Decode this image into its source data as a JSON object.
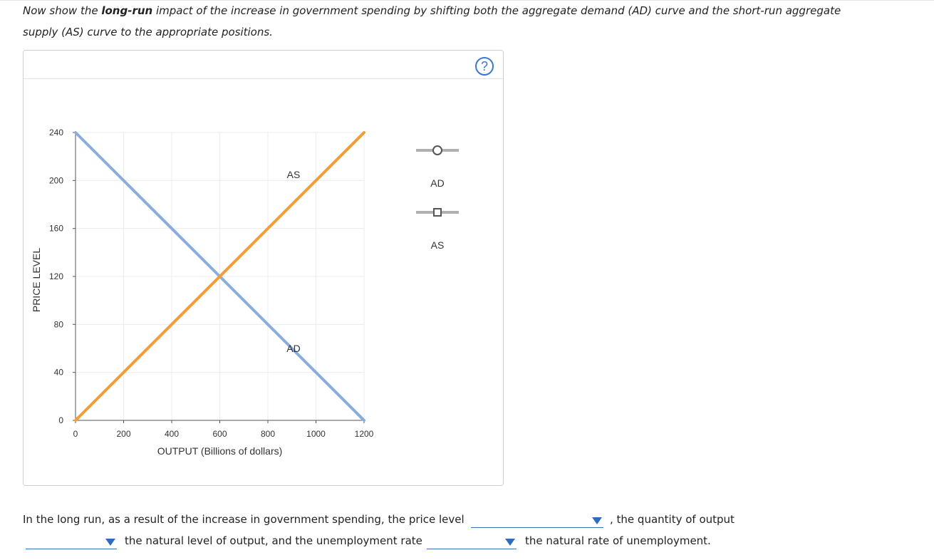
{
  "prompt": {
    "before": "Now show the ",
    "bold": "long-run",
    "after": " impact of the increase in government spending by shifting both the aggregate demand (AD) curve and the short-run aggregate supply (AS) curve to the appropriate positions."
  },
  "help_label": "?",
  "chart_data": {
    "type": "line",
    "xlabel": "OUTPUT (Billions of dollars)",
    "ylabel": "PRICE LEVEL",
    "xlim": [
      0,
      1200
    ],
    "ylim": [
      0,
      240
    ],
    "x_ticks": [
      0,
      200,
      400,
      600,
      800,
      1000,
      1200
    ],
    "y_ticks": [
      0,
      40,
      80,
      120,
      160,
      200,
      240
    ],
    "grid": true,
    "series": [
      {
        "name": "AD",
        "color": "#8aaedb",
        "points": [
          [
            0,
            240
          ],
          [
            1200,
            0
          ]
        ],
        "label_at": [
          960,
          60
        ]
      },
      {
        "name": "AS",
        "color": "#f29d37",
        "points": [
          [
            0,
            0
          ],
          [
            1200,
            240
          ]
        ],
        "label_at": [
          960,
          205
        ]
      }
    ],
    "legend": {
      "placement": "right",
      "items": [
        {
          "name": "AD",
          "marker": "circle",
          "color": "#aaaaaa"
        },
        {
          "name": "AS",
          "marker": "square",
          "color": "#aaaaaa"
        }
      ]
    }
  },
  "answer": {
    "line1_text": "In the long run, as a result of the increase in government spending, the price level",
    "line1_after": ", the quantity of output",
    "line2_middle": "the natural level of output, and the unemployment rate",
    "line2_after": "the natural rate of unemployment.",
    "dropdown_price_level": "",
    "dropdown_output": "",
    "dropdown_unemployment": ""
  }
}
